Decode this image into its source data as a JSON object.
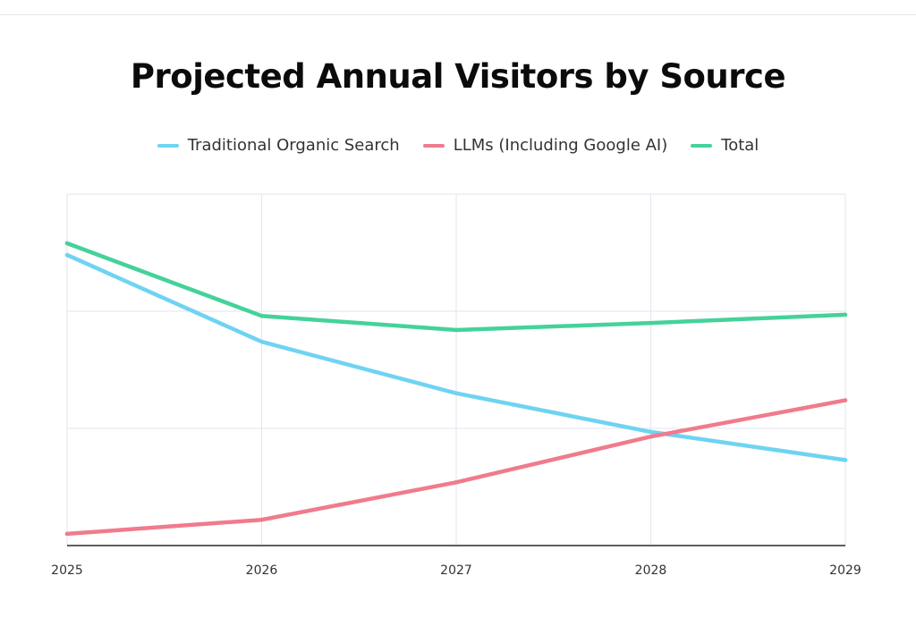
{
  "chart_data": {
    "type": "line",
    "title": "Projected Annual Visitors by Source",
    "xlabel": "",
    "ylabel": "",
    "x": [
      "2025",
      "2026",
      "2027",
      "2028",
      "2029"
    ],
    "ylim": [
      0,
      300
    ],
    "grid": true,
    "legend_position": "top-center",
    "series": [
      {
        "name": "Traditional Organic Search",
        "color": "#6fd3f2",
        "values": [
          248,
          174,
          130,
          97,
          73
        ]
      },
      {
        "name": "LLMs (Including Google AI)",
        "color": "#f07b8c",
        "values": [
          10,
          22,
          54,
          93,
          124
        ]
      },
      {
        "name": "Total",
        "color": "#45d29a",
        "values": [
          258,
          196,
          184,
          190,
          197
        ]
      }
    ]
  },
  "colors": {
    "grid": "#e3e6ee",
    "axis": "#2a2a2a",
    "text": "#333333"
  }
}
